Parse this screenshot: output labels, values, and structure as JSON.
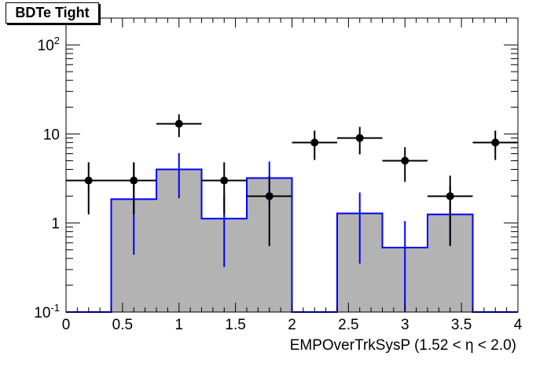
{
  "chart_data": {
    "type": "bar",
    "title": "BDTe Tight",
    "xlabel": "EMPOverTrkSysP (1.52 <   η < 2.0)",
    "ylabel": "",
    "xlim": [
      0,
      4
    ],
    "ylim": [
      0.1,
      200
    ],
    "yscale": "log",
    "grid": false,
    "x_ticks": [
      "0",
      "0.5",
      "1",
      "1.5",
      "2",
      "2.5",
      "3",
      "3.5",
      "4"
    ],
    "y_ticks": [
      {
        "mantissa": "10",
        "exponent": "-1",
        "value": 0.1
      },
      {
        "mantissa": "1",
        "exponent": "",
        "value": 1
      },
      {
        "mantissa": "10",
        "exponent": "",
        "value": 10
      },
      {
        "mantissa": "10",
        "exponent": "2",
        "value": 100
      }
    ],
    "histogram": {
      "fill": "#b3b3b3",
      "line": "#0000ff",
      "bin_edges": [
        0,
        0.4,
        0.8,
        1.2,
        1.6,
        2.0,
        2.4,
        2.8,
        3.2,
        3.6,
        4.0
      ],
      "values": [
        0,
        1.85,
        4.0,
        1.12,
        3.2,
        0,
        1.28,
        0.53,
        1.25,
        0
      ],
      "err_low": [
        0,
        0.44,
        1.9,
        0.32,
        1.6,
        0,
        0.35,
        0.1,
        0.6,
        0
      ],
      "err_high": [
        0,
        4.8,
        6.1,
        2.1,
        4.9,
        0,
        2.2,
        1.05,
        2.6,
        0
      ]
    },
    "points": {
      "color": "#000000",
      "x": [
        0.2,
        0.6,
        1.0,
        1.4,
        1.8,
        2.2,
        2.6,
        3.0,
        3.4,
        3.8
      ],
      "xerr": 0.2,
      "y": [
        3,
        3,
        13,
        3,
        2,
        8,
        9,
        5,
        2,
        8
      ],
      "err_low": [
        1.25,
        1.25,
        9.2,
        1.25,
        0.55,
        5.1,
        5.9,
        2.9,
        0.55,
        5.1
      ],
      "err_high": [
        4.8,
        4.8,
        16.6,
        4.8,
        3.4,
        10.9,
        12.0,
        7.1,
        3.4,
        10.9
      ]
    }
  }
}
